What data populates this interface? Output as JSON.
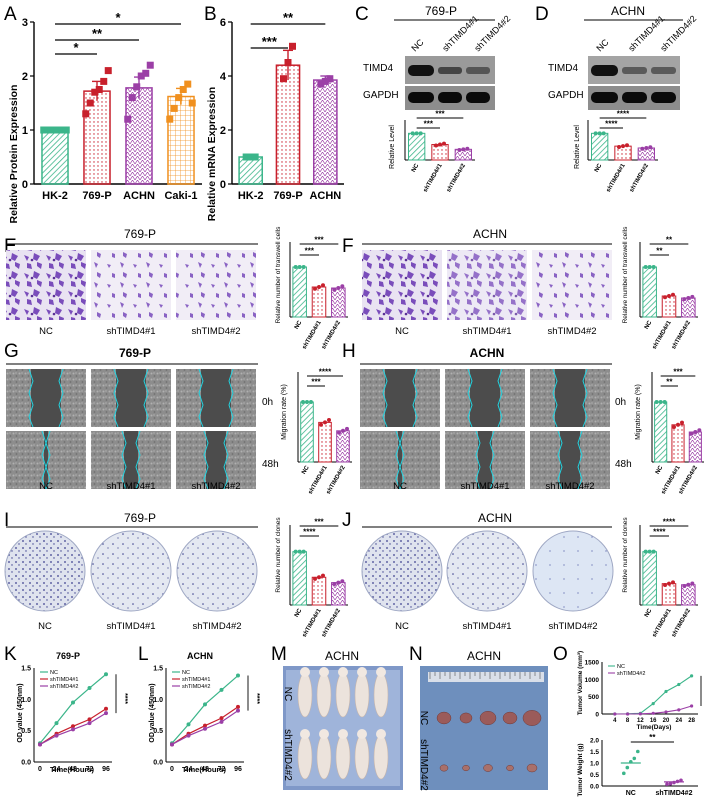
{
  "panels": {
    "A": {
      "letter": "A",
      "ylabel": "Relative Protein Expression",
      "yticks": [
        "0",
        "1",
        "2",
        "3"
      ],
      "sig": [
        "*",
        "**",
        "*"
      ],
      "chart_data": {
        "type": "bar",
        "categories": [
          "HK-2",
          "769-P",
          "ACHN",
          "Caki-1"
        ],
        "values": [
          1.0,
          1.72,
          1.78,
          1.62
        ],
        "errors": [
          0.02,
          0.18,
          0.2,
          0.15
        ],
        "points": [
          [
            1,
            1,
            1,
            1,
            1,
            1
          ],
          [
            1.3,
            1.5,
            1.7,
            1.75,
            1.9,
            2.1
          ],
          [
            1.2,
            1.6,
            1.8,
            2.0,
            2.05,
            2.2
          ],
          [
            1.2,
            1.4,
            1.6,
            1.75,
            1.85,
            1.5
          ]
        ],
        "ylim": [
          0,
          3
        ],
        "colors": [
          "#3bb58a",
          "#c8202c",
          "#9b3fa6",
          "#f0901f"
        ]
      }
    },
    "B": {
      "letter": "B",
      "ylabel": "Relative mRNA Expression",
      "yticks": [
        "0",
        "2",
        "4",
        "6"
      ],
      "sig": [
        "***",
        "**"
      ],
      "chart_data": {
        "type": "bar",
        "categories": [
          "HK-2",
          "769-P",
          "ACHN"
        ],
        "values": [
          1.0,
          4.4,
          3.85
        ],
        "errors": [
          0.03,
          0.55,
          0.15
        ],
        "points": [
          [
            1,
            1,
            1
          ],
          [
            3.9,
            4.5,
            5.1
          ],
          [
            3.7,
            3.8,
            3.9
          ]
        ],
        "ylim": [
          0,
          6
        ],
        "colors": [
          "#3bb58a",
          "#c8202c",
          "#9b3fa6"
        ]
      }
    },
    "C": {
      "letter": "C",
      "cell_line": "769-P",
      "lanes": [
        "NC",
        "shTIMD4#1",
        "shTIMD4#2"
      ],
      "bands": [
        "TIMD4",
        "GAPDH"
      ],
      "ylabel": "Relative Level",
      "sig": [
        "***",
        "***"
      ],
      "chart_data": {
        "type": "bar",
        "categories": [
          "NC",
          "shTIMD4#1",
          "shTIMD4#2"
        ],
        "values": [
          1.0,
          0.58,
          0.4
        ],
        "ylim": [
          0,
          1.5
        ]
      }
    },
    "D": {
      "letter": "D",
      "cell_line": "ACHN",
      "lanes": [
        "NC",
        "shTIMD4#1",
        "shTIMD4#2"
      ],
      "bands": [
        "TIMD4",
        "GAPDH"
      ],
      "ylabel": "Relative Level",
      "sig": [
        "****",
        "****"
      ],
      "chart_data": {
        "type": "bar",
        "categories": [
          "NC",
          "shTIMD4#1",
          "shTIMD4#2"
        ],
        "values": [
          1.0,
          0.52,
          0.45
        ],
        "ylim": [
          0,
          1.5
        ]
      }
    },
    "E": {
      "letter": "E",
      "cell_line": "769-P",
      "img_labels": [
        "NC",
        "shTIMD4#1",
        "shTIMD4#2"
      ],
      "ylabel": "Relative number of transwell cells",
      "sig": [
        "***",
        "***"
      ],
      "chart_data": {
        "type": "bar",
        "categories": [
          "NC",
          "shTIMD4#1",
          "shTIMD4#2"
        ],
        "values": [
          1.0,
          0.6,
          0.58
        ],
        "ylim": [
          0,
          1.5
        ]
      }
    },
    "F": {
      "letter": "F",
      "cell_line": "ACHN",
      "img_labels": [
        "NC",
        "shTIMD4#1",
        "shTIMD4#2"
      ],
      "ylabel": "Relative number of transwell cells",
      "sig": [
        "**",
        "**"
      ],
      "chart_data": {
        "type": "bar",
        "categories": [
          "NC",
          "shTIMD4#1",
          "shTIMD4#2"
        ],
        "values": [
          1.0,
          0.42,
          0.38
        ],
        "ylim": [
          0,
          1.5
        ]
      }
    },
    "G": {
      "letter": "G",
      "cell_line": "769-P",
      "img_labels": [
        "NC",
        "shTIMD4#1",
        "shTIMD4#2"
      ],
      "time_labels": [
        "0h",
        "48h"
      ],
      "ylabel": "Migration rate (%)",
      "sig": [
        "***",
        "****"
      ],
      "chart_data": {
        "type": "bar",
        "categories": [
          "NC",
          "shTIMD4#1",
          "shTIMD4#2"
        ],
        "values": [
          100,
          66,
          52
        ],
        "ylim": [
          0,
          150
        ]
      }
    },
    "H": {
      "letter": "H",
      "cell_line": "ACHN",
      "img_labels": [
        "NC",
        "shTIMD4#1",
        "shTIMD4#2"
      ],
      "time_labels": [
        "0h",
        "48h"
      ],
      "ylabel": "Migration rate (%)",
      "sig": [
        "**",
        "***"
      ],
      "chart_data": {
        "type": "bar",
        "categories": [
          "NC",
          "shTIMD4#1",
          "shTIMD4#2"
        ],
        "values": [
          100,
          62,
          50
        ],
        "ylim": [
          0,
          150
        ]
      }
    },
    "I": {
      "letter": "I",
      "cell_line": "769-P",
      "img_labels": [
        "NC",
        "shTIMD4#1",
        "shTIMD4#2"
      ],
      "ylabel": "Relative number of clones",
      "sig": [
        "****",
        "***"
      ],
      "chart_data": {
        "type": "bar",
        "categories": [
          "NC",
          "shTIMD4#1",
          "shTIMD4#2"
        ],
        "values": [
          1.0,
          0.52,
          0.42
        ],
        "ylim": [
          0,
          1.5
        ]
      }
    },
    "J": {
      "letter": "J",
      "cell_line": "ACHN",
      "img_labels": [
        "NC",
        "shTIMD4#1",
        "shTIMD4#2"
      ],
      "ylabel": "Relative number of clones",
      "sig": [
        "****",
        "****"
      ],
      "chart_data": {
        "type": "bar",
        "categories": [
          "NC",
          "shTIMD4#1",
          "shTIMD4#2"
        ],
        "values": [
          1.0,
          0.4,
          0.38
        ],
        "ylim": [
          0,
          1.5
        ]
      }
    },
    "K": {
      "letter": "K",
      "title": "769-P",
      "xlabel": "Time(Hours)",
      "ylabel": "OD value (450nm)",
      "xticks": [
        "0",
        "24",
        "48",
        "72",
        "96"
      ],
      "yticks": [
        "0.0",
        "0.5",
        "1.0",
        "1.5"
      ],
      "sig": "****",
      "chart_data": {
        "type": "line",
        "x": [
          0,
          24,
          48,
          72,
          96
        ],
        "series": [
          {
            "name": "NC",
            "values": [
              0.3,
              0.62,
              0.95,
              1.18,
              1.4
            ],
            "color": "#3bb58a"
          },
          {
            "name": "shTIMD4#1",
            "values": [
              0.28,
              0.45,
              0.57,
              0.68,
              0.85
            ],
            "color": "#c8202c"
          },
          {
            "name": "shTIMD4#2",
            "values": [
              0.28,
              0.42,
              0.52,
              0.62,
              0.78
            ],
            "color": "#9b3fa6"
          }
        ],
        "ylim": [
          0,
          1.5
        ]
      }
    },
    "L": {
      "letter": "L",
      "title": "ACHN",
      "xlabel": "Time(Hours)",
      "ylabel": "OD value (450nm)",
      "xticks": [
        "0",
        "24",
        "48",
        "72",
        "96"
      ],
      "yticks": [
        "0.0",
        "0.5",
        "1.0",
        "1.5"
      ],
      "sig": "****",
      "chart_data": {
        "type": "line",
        "x": [
          0,
          24,
          48,
          72,
          96
        ],
        "series": [
          {
            "name": "NC",
            "values": [
              0.3,
              0.6,
              0.92,
              1.15,
              1.38
            ],
            "color": "#3bb58a"
          },
          {
            "name": "shTIMD4#1",
            "values": [
              0.28,
              0.45,
              0.58,
              0.7,
              0.88
            ],
            "color": "#c8202c"
          },
          {
            "name": "shTIMD4#2",
            "values": [
              0.28,
              0.42,
              0.53,
              0.64,
              0.82
            ],
            "color": "#9b3fa6"
          }
        ],
        "ylim": [
          0,
          1.5
        ]
      }
    },
    "M": {
      "letter": "M",
      "title": "ACHN",
      "row_labels": [
        "NC",
        "shTIMD4#2"
      ]
    },
    "N": {
      "letter": "N",
      "title": "ACHN",
      "row_labels": [
        "NC",
        "shTIMD4#2"
      ]
    },
    "O": {
      "letter": "O",
      "top": {
        "ylabel": "Tumor Volume (mm³)",
        "xlabel": "Time(Days)",
        "xticks": [
          "4",
          "8",
          "12",
          "16",
          "20",
          "24",
          "28"
        ],
        "yticks": [
          "0",
          "500",
          "1000",
          "1500"
        ],
        "sig": "****",
        "chart_data": {
          "type": "line",
          "x": [
            4,
            8,
            12,
            16,
            20,
            24,
            28
          ],
          "series": [
            {
              "name": "NC",
              "values": [
                0,
                5,
                20,
                300,
                650,
                850,
                1100
              ],
              "color": "#3bb58a"
            },
            {
              "name": "shTIMD4#2",
              "values": [
                0,
                0,
                5,
                20,
                60,
                120,
                230
              ],
              "color": "#9b3fa6"
            }
          ],
          "ylim": [
            0,
            1500
          ]
        }
      },
      "bottom": {
        "ylabel": "Tumor Weight (g)",
        "yticks": [
          "0.0",
          "0.5",
          "1.0",
          "1.5",
          "2.0"
        ],
        "categories": [
          "NC",
          "shTIMD4#2"
        ],
        "sig": "**",
        "chart_data": {
          "type": "scatter",
          "categories": [
            "NC",
            "shTIMD4#2"
          ],
          "values": [
            1.0,
            0.18
          ],
          "ylim": [
            0,
            2.0
          ]
        }
      }
    }
  }
}
